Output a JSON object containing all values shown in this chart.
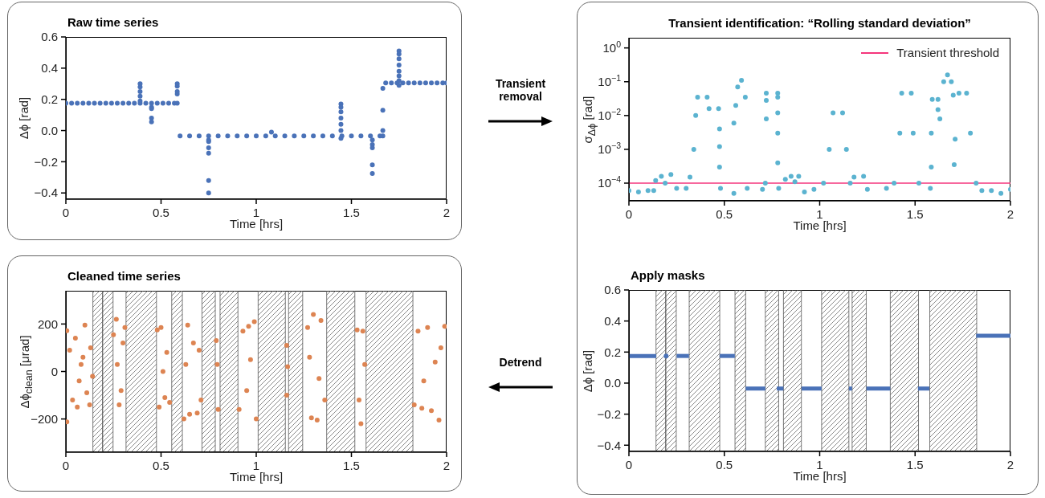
{
  "chart_data": [
    {
      "type": "scatter",
      "title": "Raw time series",
      "xlabel": "Time [hrs]",
      "ylabel": "Δϕ [rad]",
      "annotations": [
        "Transient removal"
      ],
      "marker": "circle",
      "grid": false,
      "legend": false,
      "xlim": [
        0,
        2
      ],
      "xticks": [
        0,
        0.5,
        1,
        1.5,
        2
      ],
      "ylim": [
        -0.44,
        0.6
      ],
      "yticks": [
        {
          "value": -0.4,
          "label": "−0.4"
        },
        {
          "value": -0.2,
          "label": "−0.2"
        },
        {
          "value": 0,
          "label": "0.0"
        },
        0.2,
        0.4,
        0.6
      ],
      "series": [
        {
          "color": "#4a72b8",
          "x": [
            0,
            0.03,
            0.06,
            0.09,
            0.12,
            0.15,
            0.18,
            0.21,
            0.24,
            0.27,
            0.3,
            0.33,
            0.36,
            0.39,
            0.42,
            0.45,
            0.48,
            0.51,
            0.54,
            0.57,
            0.585,
            0.39,
            0.39,
            0.39,
            0.39,
            0.39,
            0.45,
            0.45,
            0.45,
            0.45,
            0.585,
            0.585,
            0.585,
            0.585,
            0.6,
            0.65,
            0.7,
            0.75,
            0.8,
            0.85,
            0.9,
            0.95,
            1,
            1.05,
            1.1,
            1.15,
            1.2,
            1.25,
            1.3,
            1.35,
            1.4,
            1.45,
            1.5,
            1.55,
            1.6,
            1.65,
            1.665,
            0.75,
            0.75,
            0.75,
            0.75,
            0.75,
            0.75,
            1.08,
            1.445,
            1.445,
            1.445,
            1.445,
            1.445,
            1.445,
            1.445,
            1.61,
            1.61,
            1.61,
            1.61,
            1.61,
            1.665,
            1.665,
            1.665,
            1.68,
            1.71,
            1.74,
            1.77,
            1.8,
            1.83,
            1.86,
            1.89,
            1.92,
            1.95,
            1.98,
            2,
            1.75,
            1.75,
            1.75,
            1.75,
            1.75,
            1.75,
            1.75,
            1.75
          ],
          "values": [
            0.175,
            0.175,
            0.175,
            0.175,
            0.175,
            0.175,
            0.175,
            0.175,
            0.175,
            0.175,
            0.175,
            0.175,
            0.175,
            0.175,
            0.175,
            0.175,
            0.175,
            0.175,
            0.175,
            0.175,
            0.175,
            0.19,
            0.22,
            0.25,
            0.28,
            0.3,
            0.15,
            0.14,
            0.08,
            0.055,
            0.3,
            0.285,
            0.25,
            0.235,
            -0.035,
            -0.035,
            -0.035,
            -0.035,
            -0.035,
            -0.035,
            -0.035,
            -0.035,
            -0.035,
            -0.035,
            -0.035,
            -0.035,
            -0.035,
            -0.035,
            -0.035,
            -0.035,
            -0.035,
            -0.035,
            -0.035,
            -0.035,
            -0.035,
            -0.035,
            -0.035,
            -0.06,
            -0.07,
            -0.11,
            -0.145,
            -0.32,
            -0.4,
            -0.01,
            0.17,
            0.15,
            0.12,
            0.08,
            0.04,
            0,
            -0.05,
            -0.06,
            -0.09,
            -0.11,
            -0.22,
            -0.275,
            0.27,
            0.13,
            0,
            0.305,
            0.305,
            0.305,
            0.305,
            0.305,
            0.305,
            0.305,
            0.305,
            0.305,
            0.305,
            0.305,
            0.305,
            0.51,
            0.49,
            0.46,
            0.42,
            0.38,
            0.35,
            0.32,
            0.29
          ]
        }
      ]
    },
    {
      "type": "scatter",
      "title": "Transient identification: “Rolling standard deviation”",
      "xlabel": "Time [hrs]",
      "ylabel": "σ$_{Δϕ}$ [rad]",
      "marker": "circle",
      "grid": false,
      "legend": "top right",
      "log": "y",
      "xlim": [
        0,
        2
      ],
      "xticks": [
        0,
        0.5,
        1,
        1.5,
        2
      ],
      "ylim": [
        3e-05,
        2
      ],
      "yticks": [
        {
          "value": 0.0001,
          "label": "10$^{−4}$"
        },
        {
          "value": 0.001,
          "label": "10$^{−3}$"
        },
        {
          "value": 0.01,
          "label": "10$^{−2}$"
        },
        {
          "value": 0.1,
          "label": "10$^{−1}$"
        },
        {
          "value": 1,
          "label": "10$^{0}$"
        }
      ],
      "ref_lines": [
        {
          "axis": "y",
          "value": 0.0001,
          "label": "Transient threshold",
          "color": "#f5367c"
        }
      ],
      "series": [
        {
          "color": "#5bb3d0",
          "x": [
            0,
            0.05,
            0.1,
            0.13,
            0.14,
            0.17,
            0.19,
            0.22,
            0.25,
            0.3,
            0.32,
            0.34,
            0.35,
            0.36,
            0.41,
            0.42,
            0.47,
            0.475,
            0.475,
            0.475,
            0.48,
            0.55,
            0.55,
            0.56,
            0.57,
            0.59,
            0.61,
            0.62,
            0.7,
            0.715,
            0.72,
            0.72,
            0.72,
            0.78,
            0.78,
            0.78,
            0.78,
            0.78,
            0.785,
            0.82,
            0.85,
            0.87,
            0.89,
            0.92,
            0.97,
            1.02,
            1.05,
            1.07,
            1.12,
            1.14,
            1.16,
            1.18,
            1.23,
            1.25,
            1.35,
            1.39,
            1.42,
            1.43,
            1.48,
            1.49,
            1.52,
            1.58,
            1.585,
            1.585,
            1.59,
            1.62,
            1.62,
            1.63,
            1.65,
            1.67,
            1.69,
            1.7,
            1.705,
            1.71,
            1.73,
            1.77,
            1.79,
            1.82,
            1.85,
            1.9,
            1.95,
            2
          ],
          "values": [
            6e-05,
            5.5e-05,
            6e-05,
            6e-05,
            0.00012,
            0.00016,
            0.0001,
            0.00018,
            7e-05,
            7e-05,
            0.00015,
            0.001,
            0.01,
            0.035,
            0.035,
            0.016,
            0.016,
            0.004,
            0.0012,
            0.0003,
            7e-05,
            5e-05,
            0.006,
            0.02,
            0.07,
            0.11,
            0.035,
            7e-05,
            6.5e-05,
            0.0001,
            0.008,
            0.028,
            0.046,
            0.046,
            0.035,
            0.012,
            0.003,
            0.0004,
            7e-05,
            0.00013,
            0.00016,
            0.00011,
            0.00016,
            5.5e-05,
            6.5e-05,
            0.0001,
            0.001,
            0.012,
            0.012,
            0.001,
            0.0001,
            0.00015,
            0.00016,
            6.5e-05,
            7e-05,
            0.0001,
            0.003,
            0.046,
            0.046,
            0.003,
            0.0001,
            7e-05,
            0.0003,
            0.003,
            0.03,
            0.03,
            0.015,
            0.008,
            0.1,
            0.16,
            0.1,
            0.04,
            0.00035,
            0.002,
            0.046,
            0.046,
            0.003,
            0.0001,
            6e-05,
            6e-05,
            5e-05,
            6.5e-05
          ]
        }
      ]
    },
    {
      "type": "scatter",
      "title": "Cleaned time series",
      "xlabel": "Time [hrs]",
      "ylabel": "Δϕ$_{clean}$ [μrad]",
      "annotations": [
        "Detrend"
      ],
      "marker": "circle",
      "grid": false,
      "legend": false,
      "xlim": [
        0,
        2
      ],
      "xticks": [
        0,
        0.5,
        1,
        1.5,
        2
      ],
      "ylim": [
        -340,
        340
      ],
      "yticks": [
        {
          "value": -200,
          "label": "−200"
        },
        0,
        200
      ],
      "bands": [
        {
          "axis": "x",
          "from": 0.142,
          "to": 0.193
        },
        {
          "axis": "x",
          "from": 0.193,
          "to": 0.248
        },
        {
          "axis": "x",
          "from": 0.316,
          "to": 0.476
        },
        {
          "axis": "x",
          "from": 0.556,
          "to": 0.612
        },
        {
          "axis": "x",
          "from": 0.715,
          "to": 0.785
        },
        {
          "axis": "x",
          "from": 0.81,
          "to": 0.904
        },
        {
          "axis": "x",
          "from": 1.01,
          "to": 1.153
        },
        {
          "axis": "x",
          "from": 1.17,
          "to": 1.244
        },
        {
          "axis": "x",
          "from": 1.37,
          "to": 1.518
        },
        {
          "axis": "x",
          "from": 1.577,
          "to": 1.823
        }
      ],
      "series": [
        {
          "color": "#dd8452",
          "x": [
            0.005,
            0.005,
            0.02,
            0.035,
            0.05,
            0.06,
            0.08,
            0.1,
            0.11,
            0.125,
            0.13,
            0.14,
            0.07,
            0.09,
            0.25,
            0.265,
            0.28,
            0.3,
            0.31,
            0.29,
            0.27,
            0.48,
            0.5,
            0.49,
            0.52,
            0.545,
            0.53,
            0.51,
            0.62,
            0.64,
            0.65,
            0.67,
            0.69,
            0.7,
            0.71,
            0.63,
            0.79,
            0.8,
            0.795,
            0.91,
            0.93,
            0.96,
            0.99,
            1.0,
            0.95,
            0.97,
            1.16,
            1.16,
            1.165,
            1.27,
            1.29,
            1.3,
            1.32,
            1.34,
            1.36,
            1.28,
            1.33,
            1.53,
            1.55,
            1.56,
            1.54,
            1.57,
            1.83,
            1.85,
            1.87,
            1.9,
            1.92,
            1.96,
            1.99,
            1.94,
            1.88,
            1.97
          ],
          "values": [
            172,
            -212,
            90,
            -120,
            140,
            -150,
            30,
            195,
            -90,
            -140,
            100,
            -20,
            -40,
            60,
            155,
            220,
            -140,
            120,
            185,
            -80,
            30,
            175,
            185,
            -150,
            -110,
            -130,
            80,
            0,
            -200,
            195,
            -180,
            120,
            -175,
            90,
            -120,
            30,
            130,
            -160,
            30,
            -160,
            170,
            190,
            210,
            -200,
            -80,
            50,
            110,
            -100,
            20,
            185,
            -195,
            240,
            -205,
            215,
            -120,
            60,
            -30,
            175,
            -220,
            170,
            -120,
            30,
            -140,
            170,
            -155,
            185,
            -165,
            -205,
            190,
            40,
            -40,
            100
          ]
        }
      ]
    },
    {
      "type": "line",
      "title": "Apply masks",
      "xlabel": "Time [hrs]",
      "ylabel": "Δϕ [rad]",
      "marker": "none",
      "line_style": "solid",
      "grid": false,
      "legend": false,
      "xlim": [
        0,
        2
      ],
      "xticks": [
        0,
        0.5,
        1,
        1.5,
        2
      ],
      "ylim": [
        -0.44,
        0.6
      ],
      "yticks": [
        {
          "value": -0.4,
          "label": "−0.4"
        },
        {
          "value": -0.2,
          "label": "−0.2"
        },
        {
          "value": 0,
          "label": "0.0"
        },
        0.2,
        0.4,
        0.6
      ],
      "bands": [
        {
          "axis": "x",
          "from": 0.142,
          "to": 0.193
        },
        {
          "axis": "x",
          "from": 0.193,
          "to": 0.248
        },
        {
          "axis": "x",
          "from": 0.316,
          "to": 0.476
        },
        {
          "axis": "x",
          "from": 0.556,
          "to": 0.612
        },
        {
          "axis": "x",
          "from": 0.715,
          "to": 0.785
        },
        {
          "axis": "x",
          "from": 0.81,
          "to": 0.904
        },
        {
          "axis": "x",
          "from": 1.01,
          "to": 1.153
        },
        {
          "axis": "x",
          "from": 1.17,
          "to": 1.244
        },
        {
          "axis": "x",
          "from": 1.37,
          "to": 1.518
        },
        {
          "axis": "x",
          "from": 1.577,
          "to": 1.823
        }
      ],
      "series": [
        {
          "color": "#4a72b8",
          "x": [
            0,
            0.143
          ],
          "values": [
            0.175,
            0.175
          ]
        },
        {
          "type": "scatter",
          "marker": "circle",
          "color": "#4a72b8",
          "x": [
            0.195
          ],
          "values": [
            0.175
          ]
        },
        {
          "color": "#4a72b8",
          "x": [
            0.25,
            0.315
          ],
          "values": [
            0.175,
            0.175
          ]
        },
        {
          "color": "#4a72b8",
          "x": [
            0.476,
            0.555
          ],
          "values": [
            0.175,
            0.175
          ]
        },
        {
          "color": "#4a72b8",
          "x": [
            0.612,
            0.715
          ],
          "values": [
            -0.035,
            -0.035
          ]
        },
        {
          "color": "#4a72b8",
          "x": [
            0.775,
            0.81
          ],
          "values": [
            -0.035,
            -0.035
          ]
        },
        {
          "color": "#4a72b8",
          "x": [
            0.905,
            1.01
          ],
          "values": [
            -0.035,
            -0.035
          ]
        },
        {
          "color": "#4a72b8",
          "x": [
            1.153,
            1.17
          ],
          "values": [
            -0.035,
            -0.035
          ]
        },
        {
          "color": "#4a72b8",
          "x": [
            1.245,
            1.37
          ],
          "values": [
            -0.035,
            -0.035
          ]
        },
        {
          "color": "#4a72b8",
          "x": [
            1.515,
            1.575
          ],
          "values": [
            -0.035,
            -0.035
          ]
        },
        {
          "color": "#4a72b8",
          "x": [
            1.82,
            2
          ],
          "values": [
            0.305,
            0.305
          ]
        }
      ]
    }
  ]
}
